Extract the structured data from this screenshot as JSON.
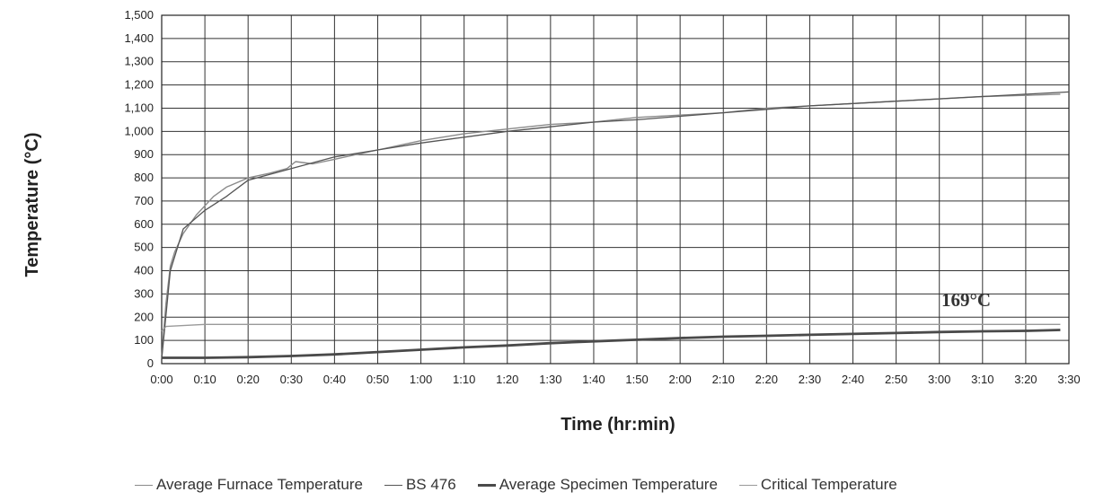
{
  "chart_data": {
    "type": "line",
    "title": "",
    "xlabel": "Time (hr:min)",
    "ylabel": "Temperature (°C)",
    "ylim": [
      0,
      1500
    ],
    "xlim": [
      0,
      210
    ],
    "x_tick_labels": [
      "0:00",
      "0:10",
      "0:20",
      "0:30",
      "0:40",
      "0:50",
      "1:00",
      "1:10",
      "1:20",
      "1:30",
      "1:40",
      "1:50",
      "2:00",
      "2:10",
      "2:20",
      "2:30",
      "2:40",
      "2:50",
      "3:00",
      "3:10",
      "3:20",
      "3:30"
    ],
    "y_tick_labels": [
      "0",
      "100",
      "200",
      "300",
      "400",
      "500",
      "600",
      "700",
      "800",
      "900",
      "1,000",
      "1,100",
      "1,200",
      "1,300",
      "1,400",
      "1,500"
    ],
    "grid": true,
    "legend_position": "bottom",
    "annotation": "169°C",
    "series": [
      {
        "name": "Average Furnace Temperature",
        "color": "#8a8a8a",
        "x": [
          0,
          1,
          2,
          3,
          5,
          8,
          12,
          15,
          20,
          25,
          29,
          31,
          35,
          40,
          50,
          60,
          70,
          80,
          90,
          100,
          110,
          120,
          130,
          140,
          150,
          160,
          170,
          180,
          190,
          200,
          208
        ],
        "y": [
          30,
          260,
          420,
          480,
          560,
          640,
          720,
          760,
          800,
          820,
          840,
          870,
          860,
          880,
          920,
          960,
          990,
          1010,
          1030,
          1040,
          1060,
          1070,
          1080,
          1100,
          1110,
          1120,
          1130,
          1140,
          1150,
          1155,
          1160
        ]
      },
      {
        "name": "BS 476",
        "color": "#555555",
        "x": [
          0,
          2,
          5,
          10,
          15,
          20,
          30,
          40,
          50,
          60,
          70,
          80,
          90,
          100,
          110,
          120,
          130,
          140,
          150,
          160,
          170,
          180,
          190,
          200,
          210
        ],
        "y": [
          20,
          400,
          580,
          660,
          720,
          790,
          840,
          890,
          920,
          950,
          975,
          1000,
          1020,
          1040,
          1050,
          1065,
          1080,
          1095,
          1110,
          1120,
          1130,
          1140,
          1150,
          1160,
          1170
        ]
      },
      {
        "name": "Average Specimen Temperature",
        "color": "#4a4a4a",
        "x": [
          0,
          10,
          20,
          30,
          40,
          50,
          60,
          70,
          80,
          90,
          100,
          110,
          120,
          130,
          140,
          150,
          160,
          170,
          180,
          190,
          200,
          208
        ],
        "y": [
          25,
          25,
          28,
          33,
          40,
          50,
          60,
          70,
          78,
          88,
          96,
          103,
          110,
          116,
          120,
          124,
          128,
          132,
          136,
          139,
          141,
          145
        ]
      },
      {
        "name": "Critical Temperature",
        "color": "#9a9a9a",
        "x": [
          0,
          1,
          10,
          208
        ],
        "y": [
          140,
          160,
          169,
          169
        ]
      }
    ]
  }
}
